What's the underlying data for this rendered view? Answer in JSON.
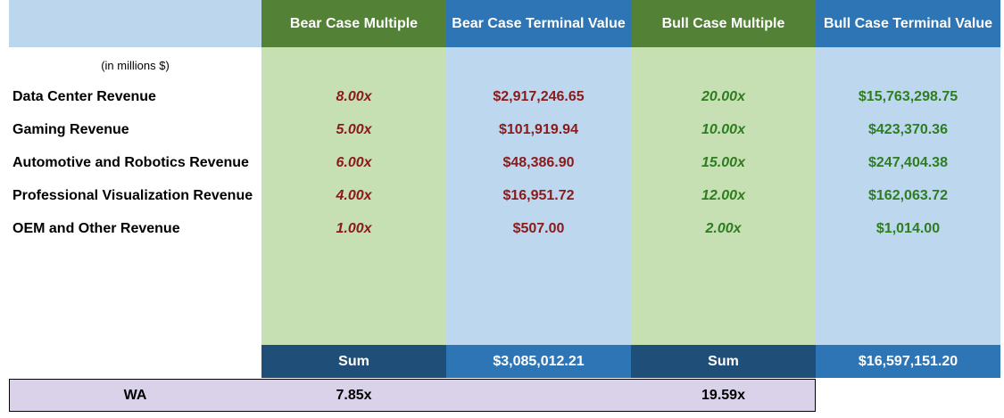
{
  "colors": {
    "corner_header_bg": "#bcd6ee",
    "green_header_bg": "#538135",
    "blue_header_bg": "#2e75b6",
    "green_column_bg": "#c6e0b4",
    "blue_column_bg": "#bdd7ee",
    "sum_dark_bg": "#1f4e79",
    "sum_light_bg": "#2e75b6",
    "wa_row_bg": "#d9d2e9",
    "bear_text": "#8b1a1a",
    "bull_text": "#2e7d20"
  },
  "headers": {
    "bear_multiple": "Bear Case Multiple",
    "bear_terminal": "Bear Case Terminal Value",
    "bull_multiple": "Bull Case Multiple",
    "bull_terminal": "Bull Case Terminal Value"
  },
  "units_note": "(in millions $)",
  "rows": [
    {
      "label": "Data Center Revenue",
      "bear_multiple": "8.00x",
      "bear_terminal": "$2,917,246.65",
      "bull_multiple": "20.00x",
      "bull_terminal": "$15,763,298.75"
    },
    {
      "label": "Gaming Revenue",
      "bear_multiple": "5.00x",
      "bear_terminal": "$101,919.94",
      "bull_multiple": "10.00x",
      "bull_terminal": "$423,370.36"
    },
    {
      "label": "Automotive and Robotics Revenue",
      "bear_multiple": "6.00x",
      "bear_terminal": "$48,386.90",
      "bull_multiple": "15.00x",
      "bull_terminal": "$247,404.38"
    },
    {
      "label": "Professional Visualization Revenue",
      "bear_multiple": "4.00x",
      "bear_terminal": "$16,951.72",
      "bull_multiple": "12.00x",
      "bull_terminal": "$162,063.72"
    },
    {
      "label": "OEM and Other Revenue",
      "bear_multiple": "1.00x",
      "bear_terminal": "$507.00",
      "bull_multiple": "2.00x",
      "bull_terminal": "$1,014.00"
    }
  ],
  "sum_row": {
    "bear_label": "Sum",
    "bear_total": "$3,085,012.21",
    "bull_label": "Sum",
    "bull_total": "$16,597,151.20"
  },
  "wa_row": {
    "label": "WA",
    "bear_value": "7.85x",
    "bull_value": "19.59x"
  }
}
